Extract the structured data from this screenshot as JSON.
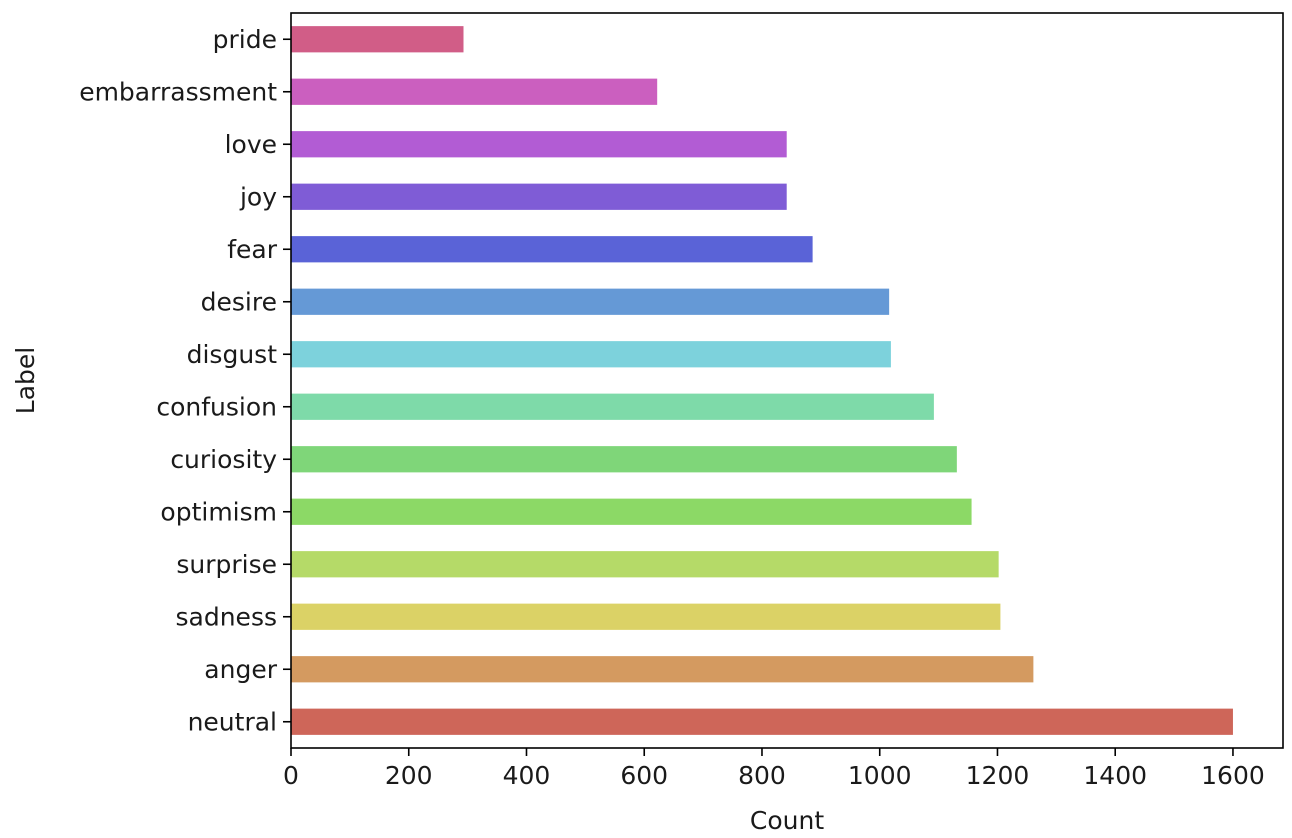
{
  "chart_data": {
    "type": "bar",
    "orientation": "horizontal",
    "title": "",
    "xlabel": "Count",
    "ylabel": "Label",
    "xlim": [
      0,
      1685
    ],
    "xticks": [
      0,
      200,
      400,
      600,
      800,
      1000,
      1200,
      1400,
      1600
    ],
    "grid": false,
    "categories": [
      "pride",
      "embarrassment",
      "love",
      "joy",
      "fear",
      "desire",
      "disgust",
      "confusion",
      "curiosity",
      "optimism",
      "surprise",
      "sadness",
      "anger",
      "neutral"
    ],
    "values": [
      293,
      622,
      842,
      842,
      886,
      1016,
      1019,
      1092,
      1131,
      1156,
      1202,
      1205,
      1261,
      1600
    ],
    "colors": [
      "#d15d87",
      "#cb5fbf",
      "#b25cd4",
      "#7f5cd6",
      "#5a63d7",
      "#6599d6",
      "#7dd2dc",
      "#7edaa9",
      "#7fd679",
      "#8cd966",
      "#b5da68",
      "#dbd266",
      "#d49a60",
      "#ce6659"
    ]
  }
}
